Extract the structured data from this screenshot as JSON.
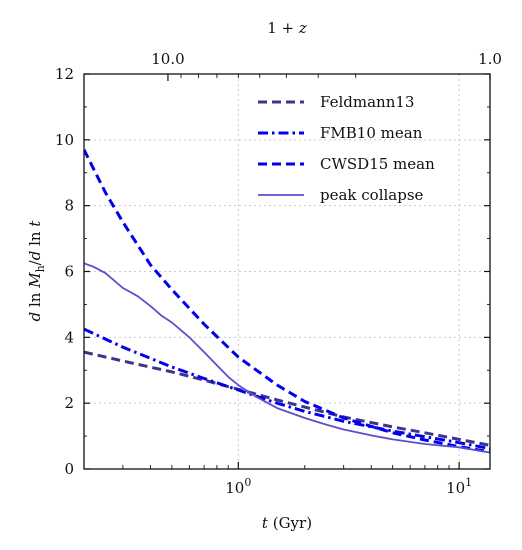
{
  "chart_data": {
    "type": "line",
    "xlabel": "t (Gyr)",
    "ylabel": "d ln M_h / d ln t",
    "top_xlabel": "1 + z",
    "x_scale": "log",
    "xlim": [
      0.2,
      13.8
    ],
    "ylim": [
      0,
      12
    ],
    "grid": true,
    "legend_position": "top-right",
    "x_ticks": [
      {
        "value": 1,
        "label": "10^0"
      },
      {
        "value": 10,
        "label": "10^1"
      }
    ],
    "y_ticks": [
      0,
      2,
      4,
      6,
      8,
      10,
      12
    ],
    "top_ticks": [
      {
        "label": "10.0",
        "t": 0.48
      },
      {
        "label": "1.0",
        "t": 13.8
      }
    ],
    "series": [
      {
        "name": "Feldmann13",
        "color": "#3d348b",
        "style": "dashed",
        "x": [
          0.2,
          0.3,
          0.5,
          0.7,
          1.0,
          1.5,
          2.0,
          3.0,
          5.0,
          7.0,
          10.0,
          13.8
        ],
        "y": [
          3.55,
          3.28,
          2.95,
          2.7,
          2.42,
          2.1,
          1.88,
          1.58,
          1.28,
          1.1,
          0.9,
          0.72
        ]
      },
      {
        "name": "FMB10 mean",
        "color": "#0000ee",
        "style": "dashdot",
        "x": [
          0.2,
          0.3,
          0.5,
          0.7,
          1.0,
          1.5,
          2.0,
          3.0,
          5.0,
          7.0,
          10.0,
          13.8
        ],
        "y": [
          4.25,
          3.7,
          3.1,
          2.75,
          2.4,
          2.0,
          1.75,
          1.45,
          1.15,
          0.98,
          0.8,
          0.62
        ]
      },
      {
        "name": "CWSD15 mean",
        "color": "#0000ee",
        "style": "dashed",
        "x": [
          0.2,
          0.25,
          0.3,
          0.4,
          0.5,
          0.7,
          1.0,
          1.5,
          2.0,
          3.0,
          5.0,
          7.0,
          10.0,
          13.8
        ],
        "y": [
          9.7,
          8.4,
          7.5,
          6.2,
          5.45,
          4.4,
          3.4,
          2.55,
          2.05,
          1.55,
          1.1,
          0.88,
          0.68,
          0.52
        ]
      },
      {
        "name": "peak collapse",
        "color": "#5a4fcf",
        "style": "solid",
        "x": [
          0.2,
          0.22,
          0.25,
          0.3,
          0.35,
          0.4,
          0.45,
          0.5,
          0.6,
          0.7,
          0.8,
          0.9,
          1.0,
          1.2,
          1.5,
          2.0,
          2.5,
          3.0,
          4.0,
          5.0,
          7.0,
          10.0,
          13.8
        ],
        "y": [
          6.25,
          6.15,
          5.95,
          5.5,
          5.25,
          4.95,
          4.65,
          4.45,
          4.0,
          3.55,
          3.15,
          2.8,
          2.55,
          2.2,
          1.85,
          1.55,
          1.35,
          1.2,
          1.02,
          0.9,
          0.76,
          0.66,
          0.5
        ]
      }
    ]
  }
}
